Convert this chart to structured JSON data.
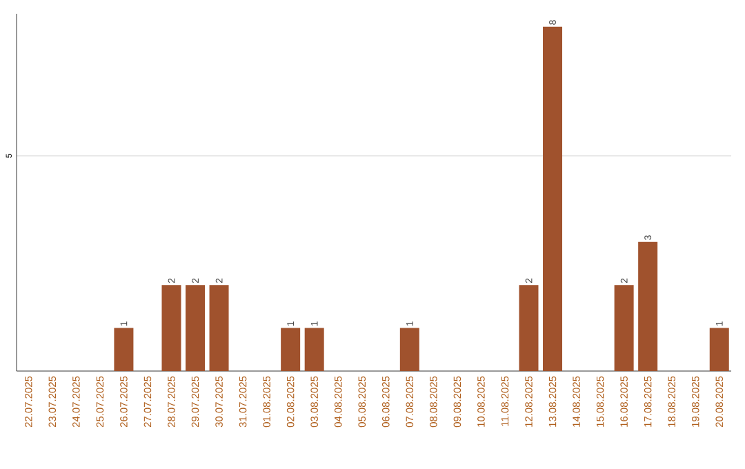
{
  "chart_data": {
    "type": "bar",
    "categories": [
      "22.07.2025",
      "23.07.2025",
      "24.07.2025",
      "25.07.2025",
      "26.07.2025",
      "27.07.2025",
      "28.07.2025",
      "29.07.2025",
      "30.07.2025",
      "31.07.2025",
      "01.08.2025",
      "02.08.2025",
      "03.08.2025",
      "04.08.2025",
      "05.08.2025",
      "06.08.2025",
      "07.08.2025",
      "08.08.2025",
      "09.08.2025",
      "10.08.2025",
      "11.08.2025",
      "12.08.2025",
      "13.08.2025",
      "14.08.2025",
      "15.08.2025",
      "16.08.2025",
      "17.08.2025",
      "18.08.2025",
      "19.08.2025",
      "20.08.2025"
    ],
    "values": [
      0,
      0,
      0,
      0,
      1,
      0,
      2,
      2,
      2,
      0,
      0,
      1,
      1,
      0,
      0,
      0,
      1,
      0,
      0,
      0,
      0,
      2,
      8,
      0,
      0,
      2,
      3,
      0,
      0,
      1
    ],
    "value_labels": [
      null,
      null,
      null,
      null,
      "1",
      null,
      "2",
      "2",
      "2",
      null,
      null,
      "1",
      "1",
      null,
      null,
      null,
      "1",
      null,
      null,
      null,
      null,
      "2",
      "8",
      null,
      null,
      "2",
      "3",
      null,
      null,
      "1"
    ],
    "color": "#a0522d",
    "ylim": [
      0,
      8.3
    ],
    "yticks": [
      5
    ],
    "grid": "y"
  }
}
